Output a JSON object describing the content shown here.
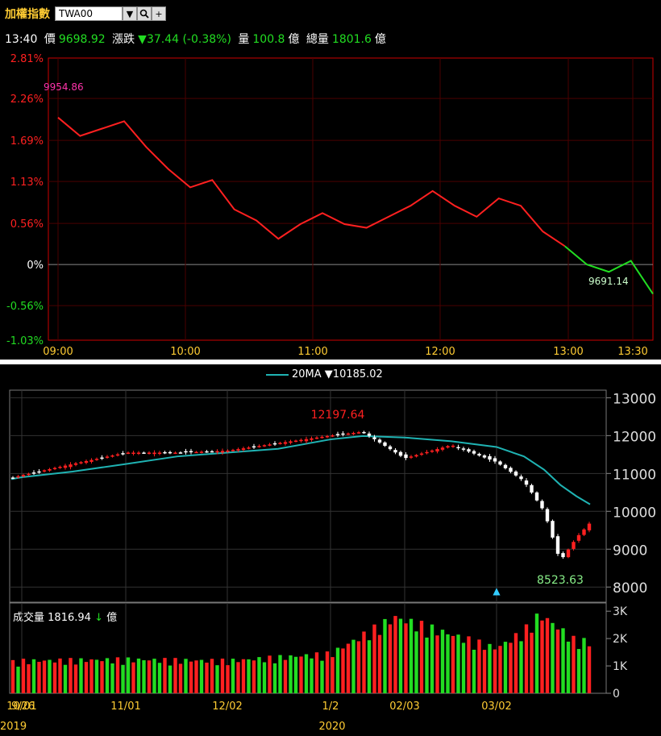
{
  "header": {
    "title": "加權指數",
    "symbol_input": "TWA00",
    "dropdown_icon": "chevron-down-icon",
    "search_icon": "search-icon",
    "add_icon": "plus-icon"
  },
  "quote": {
    "time": "13:40",
    "price_label": "價",
    "price": "9698.92",
    "change_label": "漲跌",
    "change": "▼37.44 (-0.38%)",
    "volume_label": "量",
    "volume": "100.8",
    "volume_unit": "億",
    "total_label": "總量",
    "total": "1801.6",
    "total_unit": "億"
  },
  "colors": {
    "up": "#ff2020",
    "down": "#22dd22",
    "ma": "#1fb3b3",
    "frame_top": "#cc0000",
    "frame_bottom": "#777777"
  },
  "intraday": {
    "y_ticks": [
      "2.81%",
      "2.26%",
      "1.69%",
      "1.13%",
      "0.56%",
      "0%",
      "-0.56%",
      "-1.03%"
    ],
    "x_ticks": [
      "09:00",
      "10:00",
      "11:00",
      "12:00",
      "13:00",
      "13:30"
    ],
    "high_label": "9954.86",
    "last_label": "9691.14"
  },
  "daily": {
    "ma_label": "20MA",
    "ma_arrow": "▼",
    "ma_value": "10185.02",
    "y_ticks": [
      "13000",
      "12000",
      "11000",
      "10000",
      "9000",
      "8000"
    ],
    "high_label": "12197.64",
    "low_label": "8523.63",
    "marker": "▲"
  },
  "volume": {
    "label": "成交量",
    "value": "1816.94",
    "arrow": "↓",
    "unit": "億",
    "y_ticks": [
      "3K",
      "2K",
      "1K",
      "0"
    ]
  },
  "x_axis": {
    "labels": [
      "9/26",
      "10/01",
      "11/01",
      "12/02",
      "1/2",
      "02/03",
      "03/02"
    ],
    "years": [
      "2019",
      "2020"
    ]
  },
  "chart_data": [
    {
      "type": "line",
      "title": "",
      "xlabel": "",
      "ylabel": "",
      "x": [
        "09:00",
        "09:10",
        "09:20",
        "09:30",
        "09:40",
        "09:50",
        "10:00",
        "10:10",
        "10:20",
        "10:30",
        "10:40",
        "10:50",
        "11:00",
        "11:10",
        "11:20",
        "11:30",
        "11:40",
        "11:50",
        "12:00",
        "12:10",
        "12:20",
        "12:30",
        "12:40",
        "12:50",
        "13:00",
        "13:10",
        "13:20",
        "13:30"
      ],
      "series": [
        {
          "values": [
            2.0,
            1.75,
            1.85,
            1.95,
            1.6,
            1.3,
            1.05,
            1.15,
            0.75,
            0.6,
            0.35,
            0.55,
            0.7,
            0.55,
            0.5,
            0.65,
            0.8,
            1.0,
            0.8,
            0.65,
            0.9,
            0.8,
            0.45,
            0.25,
            0.0,
            -0.1,
            0.05,
            -0.4
          ]
        }
      ],
      "ylim": [
        -1.03,
        2.81
      ]
    },
    {
      "type": "line",
      "title": "",
      "xlabel": "",
      "ylabel": "",
      "x": [
        "9/26",
        "10/01",
        "10/15",
        "11/01",
        "11/15",
        "12/02",
        "12/16",
        "1/2",
        "1/15",
        "02/03",
        "02/17",
        "03/02",
        "03/09",
        "03/13",
        "03/19",
        "03/23",
        "03/26"
      ],
      "series": [
        {
          "name": "20MA",
          "values": [
            10850,
            10900,
            11050,
            11250,
            11450,
            11550,
            11650,
            11900,
            11990,
            11950,
            11850,
            11700,
            11450,
            11100,
            10700,
            10400,
            10185
          ]
        },
        {
          "values": [
            10880,
            10950,
            11250,
            11550,
            11550,
            11600,
            11800,
            12000,
            12100,
            11400,
            11750,
            11300,
            10800,
            10000,
            8681,
            9300,
            9698
          ]
        }
      ],
      "ylim": [
        7600,
        13200
      ]
    },
    {
      "type": "bar",
      "title": "",
      "xlabel": "",
      "ylabel": "",
      "categories": [
        "9/26",
        "10/01",
        "11/01",
        "12/02",
        "1/2",
        "02/03",
        "03/02",
        "03/09",
        "03/13",
        "03/19",
        "03/23",
        "03/26"
      ],
      "values": [
        1100,
        1150,
        1200,
        1150,
        1400,
        2700,
        1600,
        2200,
        2800,
        2400,
        1900,
        1817
      ],
      "ylim": [
        0,
        3300
      ]
    }
  ]
}
